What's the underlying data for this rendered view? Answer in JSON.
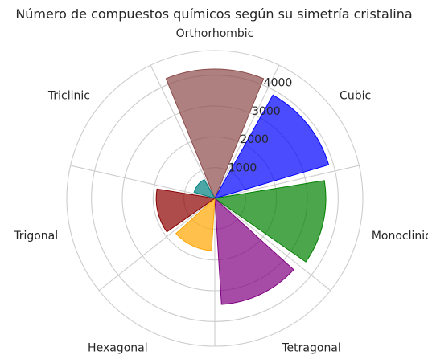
{
  "chart_data": {
    "type": "polar-bar",
    "title": "Número de compuestos químicos según su simetría cristalina",
    "categories": [
      "Cubic",
      "Tetragonal",
      "Orthorhombic",
      "Hexagonal",
      "Trigonal",
      "Monoclinic",
      "Triclinic"
    ],
    "bars": [
      {
        "category": "Orthorhombic",
        "value": 4200,
        "color": "#8b4a4a"
      },
      {
        "category": "Cubic",
        "value": 3850,
        "color": "#0000ff"
      },
      {
        "category": "Monoclinic",
        "value": 3600,
        "color": "#008000"
      },
      {
        "category": "Tetragonal",
        "value": 3450,
        "color": "#800080"
      },
      {
        "category": "Hexagonal",
        "value": 1700,
        "color": "#ffa500"
      },
      {
        "category": "Trigonal",
        "value": 1900,
        "color": "#8b0000"
      },
      {
        "category": "Triclinic",
        "value": 700,
        "color": "#008080"
      }
    ],
    "radial_ticks": [
      "1000",
      "2000",
      "3000",
      "4000"
    ],
    "r_max": 4800,
    "grid": true,
    "angular_axis_labels": [
      "Orthorhombic",
      "Cubic",
      "Monoclinic",
      "Tetragonal",
      "Hexagonal",
      "Trigonal",
      "Triclinic"
    ]
  }
}
